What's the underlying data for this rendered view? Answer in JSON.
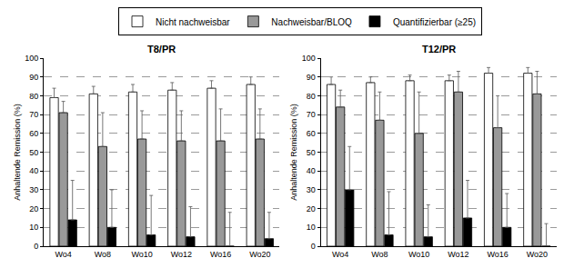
{
  "chart_data": [
    {
      "type": "bar",
      "title": "T8/PR",
      "categories": [
        "Wo4",
        "Wo8",
        "Wo10",
        "Wo12",
        "Wo16",
        "Wo20"
      ],
      "series": [
        {
          "name": "Nicht nachweisbar",
          "color": "#ffffff",
          "values": [
            79,
            81,
            82,
            83,
            84,
            86
          ],
          "errors": [
            5,
            4,
            4,
            4,
            4,
            4
          ]
        },
        {
          "name": "Nachweisbar/BLOQ",
          "color": "#999999",
          "values": [
            71,
            53,
            57,
            56,
            56,
            57
          ],
          "errors": [
            6,
            18,
            15,
            16,
            17,
            16
          ]
        },
        {
          "name": "Quantifizierbar (≥25)",
          "color": "#000000",
          "values": [
            14,
            10,
            6,
            5,
            0,
            4
          ],
          "errors": [
            21,
            20,
            21,
            16,
            18,
            14
          ]
        }
      ],
      "y_label": "Anhaltende Remission (%)",
      "ylim": [
        0,
        100
      ],
      "yticks": [
        0,
        10,
        20,
        30,
        40,
        50,
        60,
        70,
        80,
        90,
        100
      ],
      "grid": true,
      "legend": "top"
    },
    {
      "type": "bar",
      "title": "T12/PR",
      "categories": [
        "Wo4",
        "Wo8",
        "Wo10",
        "Wo12",
        "Wo16",
        "Wo20"
      ],
      "series": [
        {
          "name": "Nicht nachweisbar",
          "color": "#ffffff",
          "values": [
            86,
            87,
            88,
            88,
            92,
            92
          ],
          "errors": [
            4,
            3,
            3,
            3,
            3,
            3
          ]
        },
        {
          "name": "Nachweisbar/BLOQ",
          "color": "#999999",
          "values": [
            74,
            67,
            60,
            82,
            63,
            81
          ],
          "errors": [
            9,
            15,
            22,
            11,
            17,
            12
          ]
        },
        {
          "name": "Quantifizierbar (≥25)",
          "color": "#000000",
          "values": [
            30,
            6,
            5,
            15,
            10,
            0
          ],
          "errors": [
            23,
            23,
            17,
            20,
            18,
            12
          ]
        }
      ],
      "y_label": "Anhaltende Remission (%)",
      "ylim": [
        0,
        100
      ],
      "yticks": [
        0,
        10,
        20,
        30,
        40,
        50,
        60,
        70,
        80,
        90,
        100
      ],
      "grid": true,
      "legend": "top"
    }
  ]
}
